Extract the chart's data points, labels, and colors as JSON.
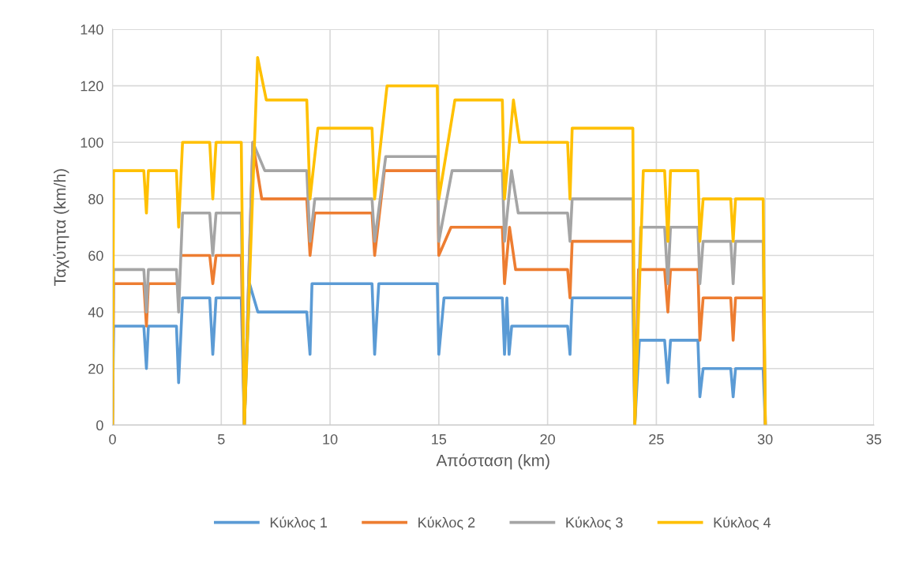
{
  "chart_data": {
    "type": "line",
    "xlabel": "Απόσταση (km)",
    "ylabel": "Ταχύτητα (km/h)",
    "xlim": [
      0,
      35
    ],
    "xticks": [
      0,
      5,
      10,
      15,
      20,
      25,
      30,
      35
    ],
    "ylim": [
      0,
      140
    ],
    "yticks": [
      0,
      20,
      40,
      60,
      80,
      100,
      120,
      140
    ],
    "grid": true,
    "legend": "bottom",
    "marker": "none",
    "line_style": "solid",
    "series": [
      {
        "name": "Κύκλος 1",
        "color": "#5b9bd5",
        "x": [
          0,
          0.05,
          1.44,
          1.56,
          1.65,
          2.94,
          3.04,
          3.22,
          4.47,
          4.61,
          4.76,
          5.92,
          6.06,
          6.3,
          6.68,
          8.93,
          9.08,
          9.17,
          11.93,
          12.05,
          12.24,
          14.93,
          15.0,
          15.24,
          17.92,
          18.02,
          18.13,
          18.23,
          18.35,
          20.92,
          21.03,
          21.13,
          23.92,
          24.01,
          24.22,
          25.38,
          25.53,
          25.65,
          26.91,
          27.0,
          27.15,
          28.42,
          28.53,
          28.64,
          29.91,
          30.01
        ],
        "values": [
          0,
          35,
          35,
          20,
          35,
          35,
          15,
          45,
          45,
          25,
          45,
          45,
          0,
          50,
          40,
          40,
          25,
          50,
          50,
          25,
          50,
          50,
          25,
          45,
          45,
          25,
          45,
          25,
          35,
          35,
          25,
          45,
          45,
          0,
          30,
          30,
          15,
          30,
          30,
          10,
          20,
          20,
          10,
          20,
          20,
          0
        ]
      },
      {
        "name": "Κύκλος 2",
        "color": "#ed7d31",
        "x": [
          0,
          0.05,
          1.44,
          1.56,
          1.65,
          2.94,
          3.04,
          3.22,
          4.47,
          4.61,
          4.76,
          5.92,
          6.06,
          6.45,
          6.86,
          8.93,
          9.08,
          9.3,
          11.93,
          12.05,
          12.5,
          14.93,
          15.0,
          15.56,
          17.92,
          18.02,
          18.25,
          18.53,
          20.92,
          21.03,
          21.13,
          23.92,
          24.01,
          24.18,
          25.38,
          25.53,
          25.65,
          26.91,
          27.0,
          27.15,
          28.42,
          28.53,
          28.64,
          29.91,
          30.01
        ],
        "values": [
          0,
          50,
          50,
          35,
          50,
          50,
          null,
          60,
          60,
          50,
          60,
          60,
          0,
          100,
          80,
          80,
          60,
          75,
          75,
          60,
          90,
          90,
          60,
          70,
          70,
          50,
          70,
          55,
          55,
          45,
          65,
          65,
          0,
          55,
          55,
          40,
          55,
          55,
          30,
          45,
          45,
          30,
          45,
          45,
          0
        ]
      },
      {
        "name": "Κύκλος 3",
        "color": "#a5a5a5",
        "x": [
          0,
          0.05,
          1.44,
          1.56,
          1.65,
          2.94,
          3.04,
          3.22,
          4.47,
          4.61,
          4.76,
          5.92,
          6.06,
          6.45,
          7.0,
          8.93,
          9.08,
          9.3,
          11.93,
          12.05,
          12.56,
          14.93,
          15.0,
          15.61,
          17.92,
          18.02,
          18.34,
          18.65,
          20.92,
          21.03,
          21.13,
          23.92,
          24.01,
          24.28,
          25.38,
          25.53,
          25.65,
          26.91,
          27.0,
          27.15,
          28.42,
          28.53,
          28.64,
          29.91,
          30.01
        ],
        "values": [
          0,
          55,
          55,
          40,
          55,
          55,
          40,
          75,
          75,
          60,
          75,
          75,
          0,
          100,
          90,
          90,
          65,
          80,
          80,
          65,
          95,
          95,
          65,
          90,
          90,
          65,
          90,
          75,
          75,
          65,
          80,
          80,
          0,
          70,
          70,
          50,
          70,
          70,
          50,
          65,
          65,
          50,
          65,
          65,
          0
        ]
      },
      {
        "name": "Κύκλος 4",
        "color": "#ffc000",
        "x": [
          0,
          0.05,
          1.44,
          1.56,
          1.65,
          2.94,
          3.04,
          3.22,
          4.47,
          4.61,
          4.76,
          5.92,
          6.06,
          6.67,
          7.07,
          8.93,
          9.08,
          9.44,
          11.93,
          12.05,
          12.62,
          14.93,
          15.0,
          15.74,
          17.92,
          18.02,
          18.43,
          18.71,
          20.92,
          21.03,
          21.13,
          23.92,
          24.01,
          24.4,
          25.38,
          25.53,
          25.65,
          26.91,
          27.0,
          27.15,
          28.42,
          28.53,
          28.64,
          29.91,
          30.01
        ],
        "values": [
          0,
          90,
          90,
          75,
          90,
          90,
          70,
          100,
          100,
          80,
          100,
          100,
          0,
          130,
          115,
          115,
          80,
          105,
          105,
          80,
          120,
          120,
          80,
          115,
          115,
          80,
          115,
          100,
          100,
          80,
          105,
          105,
          0,
          90,
          90,
          65,
          90,
          90,
          65,
          80,
          80,
          65,
          80,
          80,
          0
        ]
      }
    ]
  }
}
